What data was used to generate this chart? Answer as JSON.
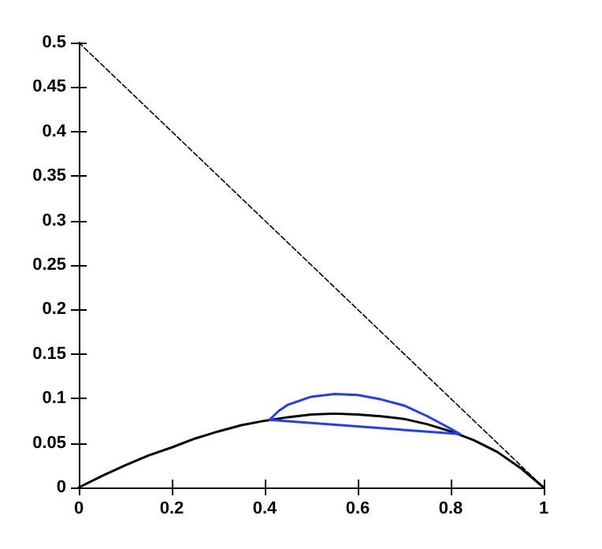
{
  "chart_data": {
    "type": "line",
    "x": [
      0,
      0.05,
      0.1,
      0.15,
      0.2,
      0.25,
      0.3,
      0.35,
      0.4,
      0.45,
      0.5,
      0.55,
      0.6,
      0.65,
      0.7,
      0.75,
      0.8,
      0.85,
      0.9,
      0.95,
      1
    ],
    "series": [
      {
        "color": "#000000",
        "values": [
          0,
          0.013,
          0.025,
          0.036,
          0.045,
          0.055,
          0.063,
          0.07,
          0.075,
          0.079,
          0.082,
          0.083,
          0.082,
          0.08,
          0.077,
          0.071,
          0.063,
          0.053,
          0.04,
          0.022,
          0
        ]
      },
      {
        "color": "#1f3fff",
        "x": [
          0.41,
          0.43,
          0.45,
          0.5,
          0.55,
          0.6,
          0.65,
          0.7,
          0.75,
          0.8,
          0.82
        ],
        "values": [
          0.076,
          0.086,
          0.093,
          0.102,
          0.105,
          0.104,
          0.099,
          0.092,
          0.08,
          0.066,
          0.06
        ]
      },
      {
        "color": "#1f3fff",
        "x": [
          0.41,
          0.82
        ],
        "values": [
          0.076,
          0.06
        ]
      },
      {
        "color": "#000000",
        "x": [
          0,
          1
        ],
        "values": [
          0.5,
          0
        ],
        "line_style": "dashed"
      }
    ],
    "xlim": [
      0,
      1
    ],
    "xticks": [
      0,
      0.2,
      0.4,
      0.6,
      0.8,
      1
    ],
    "ylim": [
      0,
      0.5
    ],
    "yticks": [
      0,
      0.05,
      0.1,
      0.15,
      0.2,
      0.25,
      0.3,
      0.35,
      0.4,
      0.45,
      0.5
    ],
    "grid": false,
    "marker": "none",
    "line_style": "solid"
  }
}
